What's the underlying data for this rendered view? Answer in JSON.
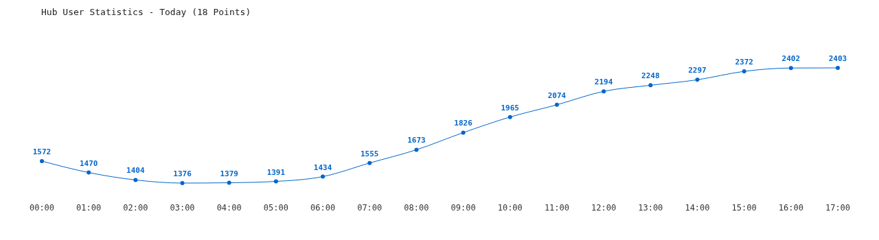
{
  "chart_data": {
    "type": "line",
    "title": "Hub User Statistics - Today (18 Points)",
    "categories": [
      "00:00",
      "01:00",
      "02:00",
      "03:00",
      "04:00",
      "05:00",
      "06:00",
      "07:00",
      "08:00",
      "09:00",
      "10:00",
      "11:00",
      "12:00",
      "13:00",
      "14:00",
      "15:00",
      "16:00",
      "17:00"
    ],
    "series": [
      {
        "color": "#0066cc",
        "values": [
          1572,
          1470,
          1404,
          1376,
          1379,
          1391,
          1434,
          1555,
          1673,
          1826,
          1965,
          2074,
          2194,
          2248,
          2297,
          2372,
          2402,
          2403
        ]
      }
    ],
    "data_labels": true,
    "marker": "circle"
  }
}
